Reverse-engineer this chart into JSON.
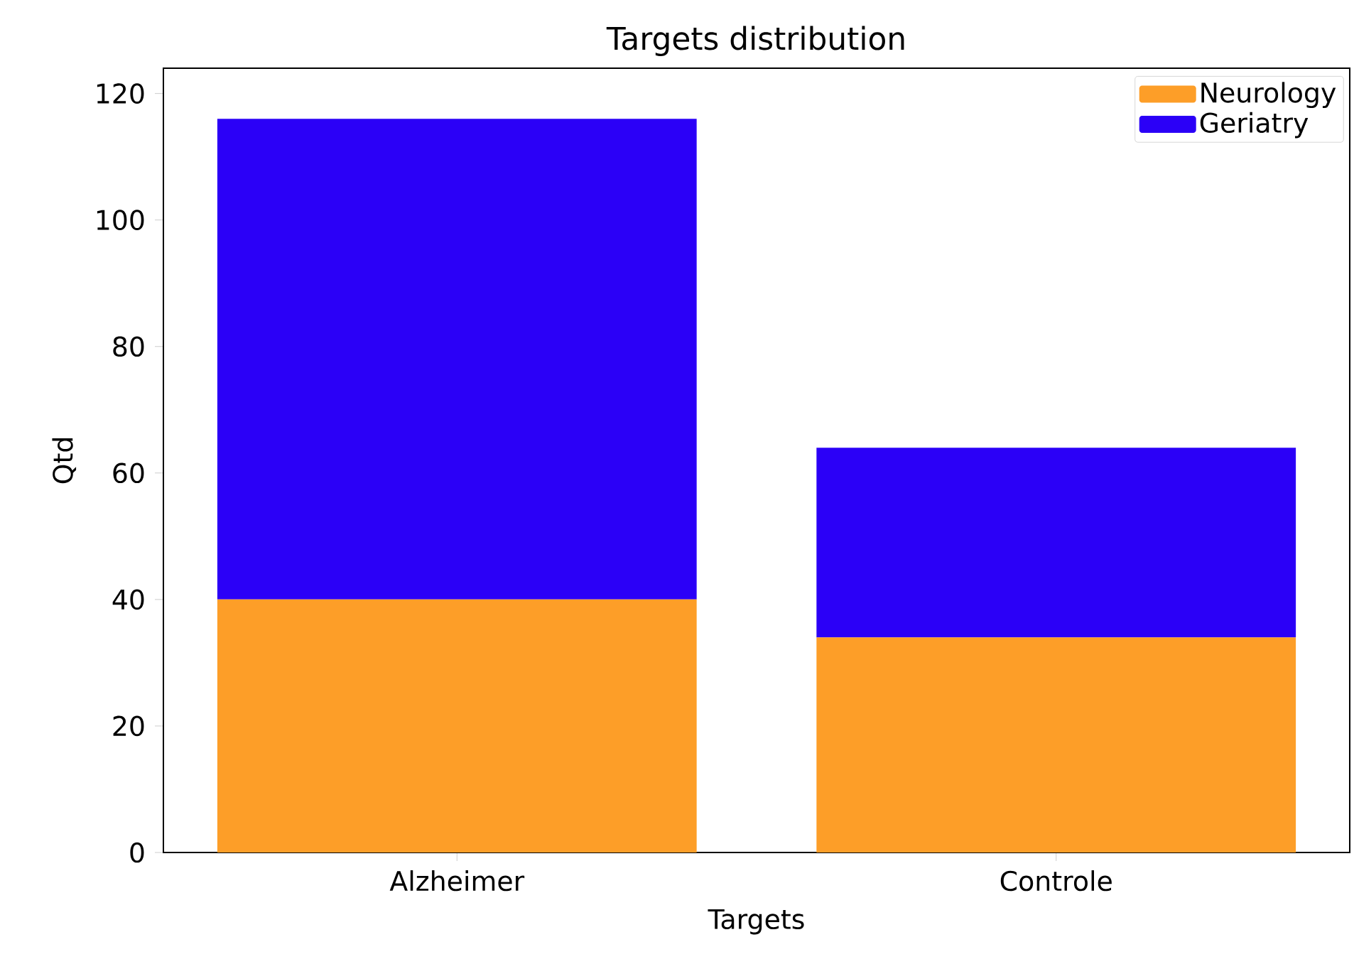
{
  "chart_data": {
    "type": "bar",
    "title": "Targets distribution",
    "xlabel": "Targets",
    "ylabel": "Qtd",
    "categories": [
      "Alzheimer",
      "Controle"
    ],
    "series": [
      {
        "name": "Neurology",
        "color": "#fd9e28",
        "values": [
          40,
          34
        ]
      },
      {
        "name": "Geriatry",
        "color": "#2b00f7",
        "values": [
          76,
          30
        ]
      }
    ],
    "stacked": true,
    "ylim": [
      0,
      124
    ],
    "yticks": [
      0,
      20,
      40,
      60,
      80,
      100,
      120
    ],
    "legend": "top right"
  }
}
